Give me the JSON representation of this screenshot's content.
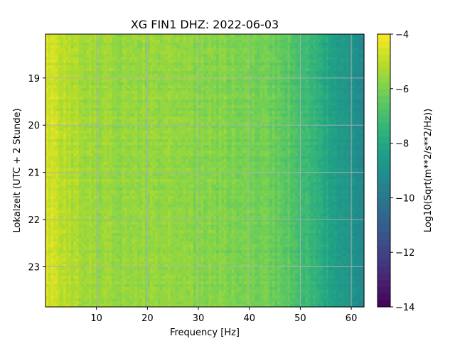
{
  "chart_data": {
    "type": "heatmap",
    "title": "XG FIN1  DHZ: 2022-06-03",
    "xlabel": "Frequency [Hz]",
    "ylabel": "Lokalzeit (UTC + 2 Stunde)",
    "colorbar_label": "Log10(Sqrt(m**2/s**2/Hz))",
    "colormap": "viridis",
    "grid": true,
    "xlim": [
      0,
      62.5
    ],
    "ylim": [
      23.85,
      18.07
    ],
    "y_inverted": true,
    "clim": [
      -14,
      -4
    ],
    "x_ticks": [
      10,
      20,
      30,
      40,
      50,
      60
    ],
    "x_tick_labels": [
      "10",
      "20",
      "30",
      "40",
      "50",
      "60"
    ],
    "y_ticks": [
      19,
      20,
      21,
      22,
      23
    ],
    "y_tick_labels": [
      "19",
      "20",
      "21",
      "22",
      "23"
    ],
    "colorbar_ticks": [
      -4,
      -6,
      -8,
      -10,
      -12,
      -14
    ],
    "colorbar_tick_labels": [
      "−4",
      "−6",
      "−8",
      "−10",
      "−12",
      "−14"
    ],
    "colorbar_levels": 40,
    "psd_profile": {
      "frequency_hz": [
        0,
        2,
        5,
        10,
        15,
        20,
        25,
        30,
        35,
        40,
        45,
        48,
        50,
        52,
        55,
        58,
        60,
        62.5
      ],
      "log10_amplitude": [
        -4.6,
        -4.9,
        -5.2,
        -5.5,
        -5.6,
        -5.6,
        -5.7,
        -5.8,
        -5.9,
        -6.0,
        -6.3,
        -6.6,
        -7.0,
        -7.4,
        -8.0,
        -8.5,
        -8.9,
        -9.2
      ]
    }
  }
}
